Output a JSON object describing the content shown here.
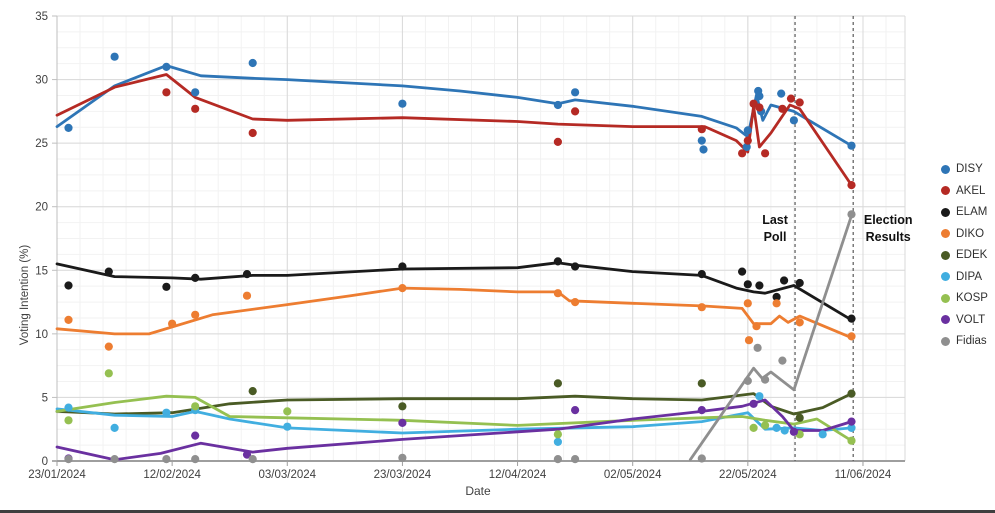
{
  "chart_data": {
    "type": "line+scatter",
    "title": "",
    "xlabel": "Date",
    "ylabel": "Voting Intention (%)",
    "x_unit": "days since 23/01/2024",
    "x_ticks": [
      {
        "day": 0,
        "label": "23/01/2024"
      },
      {
        "day": 20,
        "label": "12/02/2024"
      },
      {
        "day": 40,
        "label": "03/03/2024"
      },
      {
        "day": 60,
        "label": "23/03/2024"
      },
      {
        "day": 80,
        "label": "12/04/2024"
      },
      {
        "day": 100,
        "label": "02/05/2024"
      },
      {
        "day": 120,
        "label": "22/05/2024"
      },
      {
        "day": 140,
        "label": "11/06/2024"
      }
    ],
    "xlim": [
      0,
      147.3
    ],
    "ylim": [
      0,
      35
    ],
    "y_ticks": [
      0,
      5,
      10,
      15,
      20,
      25,
      30,
      35
    ],
    "grid": true,
    "legend_position": "right",
    "annotations": [
      {
        "type": "vline",
        "day": 128.2,
        "label_lines": [
          "Last",
          "Poll"
        ],
        "label_side": "left"
      },
      {
        "type": "vline",
        "day": 138.3,
        "label_lines": [
          "Election",
          "Results"
        ],
        "label_side": "right"
      }
    ],
    "colors": {
      "major_grid": "#d9d9d9",
      "minor_grid": "#f2f2f2",
      "axis": "#9e9e9e",
      "dashed_line": "#595959",
      "tick_text": "#404040",
      "annotation_text": "#111111"
    },
    "series": [
      {
        "name": "DISY",
        "color": "#2E75B6",
        "trend": [
          [
            0,
            26.3
          ],
          [
            10,
            29.5
          ],
          [
            19,
            31.1
          ],
          [
            25,
            30.3
          ],
          [
            34,
            30.1
          ],
          [
            40,
            30.0
          ],
          [
            60,
            29.5
          ],
          [
            70,
            29.1
          ],
          [
            80,
            28.6
          ],
          [
            87,
            28.1
          ],
          [
            90,
            28.4
          ],
          [
            100,
            27.9
          ],
          [
            112,
            27.1
          ],
          [
            118,
            26.2
          ],
          [
            120,
            25.5
          ],
          [
            121.5,
            28.8
          ],
          [
            122.6,
            26.8
          ],
          [
            124,
            28.0
          ],
          [
            128,
            27.5
          ],
          [
            138,
            24.8
          ]
        ],
        "polls": [
          [
            2,
            26.2
          ],
          [
            10,
            31.8
          ],
          [
            19,
            31.0
          ],
          [
            24,
            29.0
          ],
          [
            34,
            31.3
          ],
          [
            60,
            28.1
          ],
          [
            87,
            28.0
          ],
          [
            90,
            29.0
          ],
          [
            112,
            25.2
          ],
          [
            112.3,
            24.5
          ],
          [
            119.8,
            24.7
          ],
          [
            120,
            26.0
          ],
          [
            121.8,
            29.1
          ],
          [
            122,
            28.7
          ],
          [
            122.3,
            27.5
          ],
          [
            125.8,
            28.9
          ],
          [
            128,
            26.8
          ],
          [
            138,
            24.8
          ]
        ]
      },
      {
        "name": "AKEL",
        "color": "#B52A24",
        "trend": [
          [
            0,
            27.2
          ],
          [
            10,
            29.4
          ],
          [
            19,
            30.4
          ],
          [
            24,
            28.6
          ],
          [
            34,
            26.9
          ],
          [
            40,
            26.8
          ],
          [
            60,
            27.0
          ],
          [
            80,
            26.7
          ],
          [
            87,
            26.5
          ],
          [
            100,
            26.3
          ],
          [
            112.5,
            26.3
          ],
          [
            118,
            25.2
          ],
          [
            120,
            24.3
          ],
          [
            121,
            27.9
          ],
          [
            122,
            24.7
          ],
          [
            124,
            25.8
          ],
          [
            127.3,
            28.0
          ],
          [
            129,
            27.7
          ],
          [
            138,
            21.7
          ]
        ],
        "polls": [
          [
            19,
            29.0
          ],
          [
            24,
            27.7
          ],
          [
            34,
            25.8
          ],
          [
            87,
            25.1
          ],
          [
            90,
            27.5
          ],
          [
            112,
            26.1
          ],
          [
            119,
            24.2
          ],
          [
            120,
            25.2
          ],
          [
            121,
            28.1
          ],
          [
            122,
            27.8
          ],
          [
            123,
            24.2
          ],
          [
            126,
            27.7
          ],
          [
            127.5,
            28.5
          ],
          [
            129,
            28.2
          ],
          [
            138,
            21.7
          ]
        ]
      },
      {
        "name": "ELAM",
        "color": "#1a1a1a",
        "trend": [
          [
            0,
            15.5
          ],
          [
            10,
            14.5
          ],
          [
            20,
            14.4
          ],
          [
            25,
            14.3
          ],
          [
            34,
            14.6
          ],
          [
            40,
            14.6
          ],
          [
            60,
            15.1
          ],
          [
            80,
            15.2
          ],
          [
            87,
            15.6
          ],
          [
            90,
            15.4
          ],
          [
            100,
            14.9
          ],
          [
            112,
            14.6
          ],
          [
            118,
            13.6
          ],
          [
            121,
            13.3
          ],
          [
            123,
            13.2
          ],
          [
            128,
            13.8
          ],
          [
            138,
            11.1
          ]
        ],
        "polls": [
          [
            2,
            13.8
          ],
          [
            9,
            14.9
          ],
          [
            19,
            13.7
          ],
          [
            24,
            14.4
          ],
          [
            33,
            14.7
          ],
          [
            60,
            15.3
          ],
          [
            87,
            15.7
          ],
          [
            90,
            15.3
          ],
          [
            112,
            14.7
          ],
          [
            119,
            14.9
          ],
          [
            120,
            13.9
          ],
          [
            122,
            13.8
          ],
          [
            125,
            12.9
          ],
          [
            126.3,
            14.2
          ],
          [
            129,
            14.0
          ],
          [
            138,
            11.2
          ]
        ]
      },
      {
        "name": "DIKO",
        "color": "#ED7D31",
        "trend": [
          [
            0,
            10.4
          ],
          [
            10,
            10.0
          ],
          [
            16,
            10.0
          ],
          [
            27,
            11.5
          ],
          [
            40,
            12.3
          ],
          [
            51,
            13.0
          ],
          [
            60,
            13.6
          ],
          [
            70,
            13.5
          ],
          [
            80,
            13.3
          ],
          [
            87,
            13.3
          ],
          [
            89,
            12.6
          ],
          [
            100,
            12.4
          ],
          [
            112,
            12.2
          ],
          [
            119,
            12.0
          ],
          [
            121,
            10.8
          ],
          [
            124,
            10.8
          ],
          [
            125.5,
            11.4
          ],
          [
            127,
            10.9
          ],
          [
            129,
            11.4
          ],
          [
            138,
            9.7
          ]
        ],
        "polls": [
          [
            2,
            11.1
          ],
          [
            9,
            9.0
          ],
          [
            20,
            10.8
          ],
          [
            24,
            11.5
          ],
          [
            33,
            13.0
          ],
          [
            60,
            13.6
          ],
          [
            87,
            13.2
          ],
          [
            90,
            12.5
          ],
          [
            112,
            12.1
          ],
          [
            120,
            12.4
          ],
          [
            120.2,
            9.5
          ],
          [
            121.5,
            10.6
          ],
          [
            125,
            12.4
          ],
          [
            129,
            10.9
          ],
          [
            138,
            9.8
          ]
        ]
      },
      {
        "name": "EDEK",
        "color": "#4A5B25",
        "trend": [
          [
            0,
            3.9
          ],
          [
            10,
            3.7
          ],
          [
            20,
            3.8
          ],
          [
            30,
            4.5
          ],
          [
            40,
            4.8
          ],
          [
            60,
            4.9
          ],
          [
            80,
            4.9
          ],
          [
            90,
            5.1
          ],
          [
            100,
            4.9
          ],
          [
            112,
            4.8
          ],
          [
            121,
            5.3
          ],
          [
            124,
            4.3
          ],
          [
            128,
            3.7
          ],
          [
            133,
            4.2
          ],
          [
            138,
            5.3
          ]
        ],
        "polls": [
          [
            34,
            5.5
          ],
          [
            60,
            4.3
          ],
          [
            87,
            6.1
          ],
          [
            112,
            6.1
          ],
          [
            129,
            3.4
          ],
          [
            138,
            5.3
          ]
        ]
      },
      {
        "name": "DIPA",
        "color": "#41AEE0",
        "trend": [
          [
            0,
            4.1
          ],
          [
            10,
            3.6
          ],
          [
            20,
            3.5
          ],
          [
            24,
            3.9
          ],
          [
            30,
            3.3
          ],
          [
            40,
            2.6
          ],
          [
            60,
            2.2
          ],
          [
            80,
            2.5
          ],
          [
            100,
            2.7
          ],
          [
            112,
            3.1
          ],
          [
            120,
            3.8
          ],
          [
            123,
            2.5
          ],
          [
            128,
            2.6
          ],
          [
            133,
            2.4
          ],
          [
            138,
            2.6
          ]
        ],
        "polls": [
          [
            2,
            4.2
          ],
          [
            10,
            2.6
          ],
          [
            19,
            3.8
          ],
          [
            24,
            4.0
          ],
          [
            40,
            2.7
          ],
          [
            87,
            1.5
          ],
          [
            122,
            5.1
          ],
          [
            125,
            2.6
          ],
          [
            126.4,
            2.4
          ],
          [
            133,
            2.1
          ],
          [
            138,
            2.6
          ]
        ]
      },
      {
        "name": "KOSP",
        "color": "#95C051",
        "trend": [
          [
            0,
            3.9
          ],
          [
            10,
            4.6
          ],
          [
            19,
            5.1
          ],
          [
            24,
            5.0
          ],
          [
            30,
            3.5
          ],
          [
            40,
            3.4
          ],
          [
            60,
            3.2
          ],
          [
            80,
            2.8
          ],
          [
            100,
            3.2
          ],
          [
            112,
            3.4
          ],
          [
            119,
            3.5
          ],
          [
            123,
            3.2
          ],
          [
            128,
            2.9
          ],
          [
            132,
            3.3
          ],
          [
            138,
            1.6
          ]
        ],
        "polls": [
          [
            2,
            3.2
          ],
          [
            9,
            6.9
          ],
          [
            24,
            4.3
          ],
          [
            40,
            3.9
          ],
          [
            87,
            2.1
          ],
          [
            121,
            2.6
          ],
          [
            123,
            2.8
          ],
          [
            129,
            2.1
          ],
          [
            138,
            1.6
          ]
        ]
      },
      {
        "name": "VOLT",
        "color": "#6A30A0",
        "trend": [
          [
            0,
            1.1
          ],
          [
            10,
            0.1
          ],
          [
            18,
            0.6
          ],
          [
            25,
            1.4
          ],
          [
            34,
            0.7
          ],
          [
            40,
            1.0
          ],
          [
            60,
            1.7
          ],
          [
            80,
            2.3
          ],
          [
            87,
            2.5
          ],
          [
            100,
            3.3
          ],
          [
            112,
            3.9
          ],
          [
            119,
            4.3
          ],
          [
            123,
            4.8
          ],
          [
            126,
            3.5
          ],
          [
            128,
            2.4
          ],
          [
            133,
            2.4
          ],
          [
            138,
            3.1
          ]
        ],
        "polls": [
          [
            2,
            0.2
          ],
          [
            24,
            2.0
          ],
          [
            33,
            0.5
          ],
          [
            60,
            3.0
          ],
          [
            90,
            4.0
          ],
          [
            112,
            4.0
          ],
          [
            121,
            4.5
          ],
          [
            128,
            2.3
          ],
          [
            138,
            3.1
          ]
        ]
      },
      {
        "name": "Fidias",
        "color": "#8F8F8F",
        "trend": [
          [
            110,
            0.1
          ],
          [
            121,
            7.3
          ],
          [
            122.5,
            6.5
          ],
          [
            124,
            7.0
          ],
          [
            128,
            5.6
          ],
          [
            138,
            19.3
          ]
        ],
        "polls": [
          [
            2,
            0.15
          ],
          [
            10,
            0.15
          ],
          [
            19,
            0.15
          ],
          [
            24,
            0.15
          ],
          [
            34,
            0.15
          ],
          [
            60,
            0.25
          ],
          [
            87,
            0.15
          ],
          [
            90,
            0.15
          ],
          [
            112,
            0.2
          ],
          [
            120,
            6.3
          ],
          [
            121.7,
            8.9
          ],
          [
            123,
            6.4
          ],
          [
            126,
            7.9
          ],
          [
            138,
            19.4
          ]
        ]
      }
    ]
  }
}
